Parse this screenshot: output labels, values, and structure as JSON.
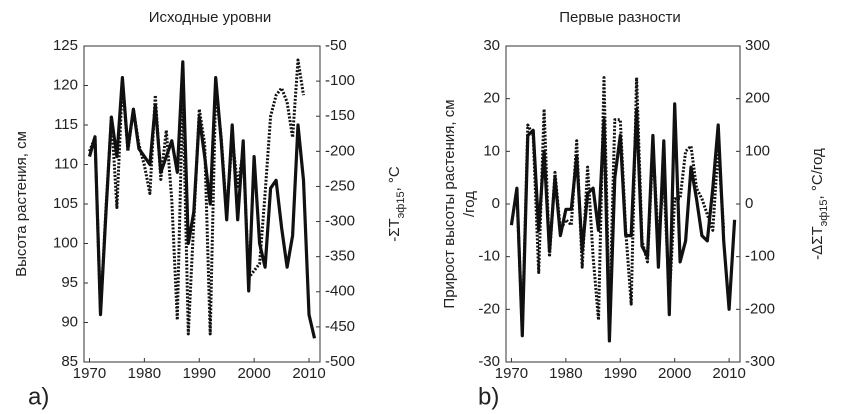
{
  "chart_data": [
    {
      "type": "line",
      "title": "Исходные уровни",
      "panel_label": "a)",
      "ylabel": [
        "Высота растения, см"
      ],
      "y2label": [
        "-ΣT",
        "эф15",
        ", °C"
      ],
      "x": [
        1970,
        1971,
        1972,
        1973,
        1974,
        1975,
        1976,
        1977,
        1978,
        1979,
        1980,
        1981,
        1982,
        1983,
        1984,
        1985,
        1986,
        1987,
        1988,
        1989,
        1990,
        1991,
        1992,
        1993,
        1994,
        1995,
        1996,
        1997,
        1998,
        1999,
        2000,
        2001,
        2002,
        2003,
        2004,
        2005,
        2006,
        2007,
        2008,
        2009,
        2010,
        2011
      ],
      "xlim": [
        1969,
        2012
      ],
      "xticks": [
        1970,
        1980,
        1990,
        2000,
        2010
      ],
      "ylim": [
        85,
        125
      ],
      "yticks": [
        85,
        90,
        95,
        100,
        105,
        110,
        115,
        120,
        125
      ],
      "y2lim": [
        -500,
        -50
      ],
      "y2ticks": [
        -500,
        -450,
        -400,
        -350,
        -300,
        -250,
        -200,
        -150,
        -100,
        -50
      ],
      "series": [
        {
          "color": "#111111",
          "style": "solid",
          "axis": "y",
          "values": [
            111,
            113.5,
            91,
            104,
            116,
            111,
            121,
            112,
            117,
            112,
            111,
            110,
            117.5,
            109,
            111,
            113,
            109,
            123,
            100,
            104,
            116,
            111,
            105,
            121,
            113,
            103,
            115,
            103,
            113,
            94,
            111,
            100,
            97,
            107,
            108,
            102,
            97,
            101,
            115,
            108,
            91,
            88
          ]
        },
        {
          "color": "#111111",
          "style": "dotted",
          "axis": "y2",
          "values": [
            -200,
            -180,
            -430,
            -280,
            -150,
            -280,
            -100,
            -200,
            -140,
            -190,
            -220,
            -260,
            -120,
            -240,
            -170,
            -270,
            -440,
            -110,
            -460,
            -300,
            -140,
            -190,
            -460,
            -110,
            -180,
            -290,
            -180,
            -250,
            -200,
            -380,
            -370,
            -360,
            -260,
            -150,
            -120,
            -110,
            -130,
            -180,
            -70,
            -120,
            null,
            null
          ]
        }
      ]
    },
    {
      "type": "line",
      "title": "Первые разности",
      "panel_label": "b)",
      "ylabel": [
        "Прирост высоты растения, см",
        "/год"
      ],
      "y2label": [
        "-ΔΣT",
        "эф15",
        ", °C/год"
      ],
      "x": [
        1970,
        1971,
        1972,
        1973,
        1974,
        1975,
        1976,
        1977,
        1978,
        1979,
        1980,
        1981,
        1982,
        1983,
        1984,
        1985,
        1986,
        1987,
        1988,
        1989,
        1990,
        1991,
        1992,
        1993,
        1994,
        1995,
        1996,
        1997,
        1998,
        1999,
        2000,
        2001,
        2002,
        2003,
        2004,
        2005,
        2006,
        2007,
        2008,
        2009,
        2010,
        2011
      ],
      "xlim": [
        1969,
        2012
      ],
      "xticks": [
        1970,
        1980,
        1990,
        2000,
        2010
      ],
      "ylim": [
        -30,
        30
      ],
      "yticks": [
        -30,
        -20,
        -10,
        0,
        10,
        20,
        30
      ],
      "y2lim": [
        -300,
        300
      ],
      "y2ticks": [
        -300,
        -200,
        -100,
        0,
        100,
        200,
        300
      ],
      "series": [
        {
          "color": "#111111",
          "style": "solid",
          "axis": "y",
          "values": [
            -4,
            3,
            -25,
            13,
            14,
            -5,
            10,
            -9,
            5,
            -6,
            -1,
            -1,
            9,
            -9,
            2,
            3,
            -5,
            16,
            -26,
            5,
            13,
            -6,
            -6,
            18,
            -8,
            -10,
            13,
            -12,
            12,
            -21,
            19,
            -11,
            -7,
            7,
            1,
            -6,
            -7,
            3,
            15,
            -7,
            -20,
            -3
          ]
        },
        {
          "color": "#111111",
          "style": "dotted",
          "axis": "y2",
          "values": [
            null,
            20,
            -240,
            150,
            130,
            -130,
            180,
            -100,
            60,
            -50,
            -30,
            -40,
            120,
            -120,
            70,
            -100,
            -220,
            240,
            -220,
            160,
            160,
            -50,
            -190,
            240,
            -70,
            -110,
            110,
            -70,
            50,
            -180,
            10,
            10,
            100,
            110,
            30,
            10,
            -20,
            -50,
            110,
            -50,
            null,
            null
          ]
        }
      ]
    }
  ]
}
